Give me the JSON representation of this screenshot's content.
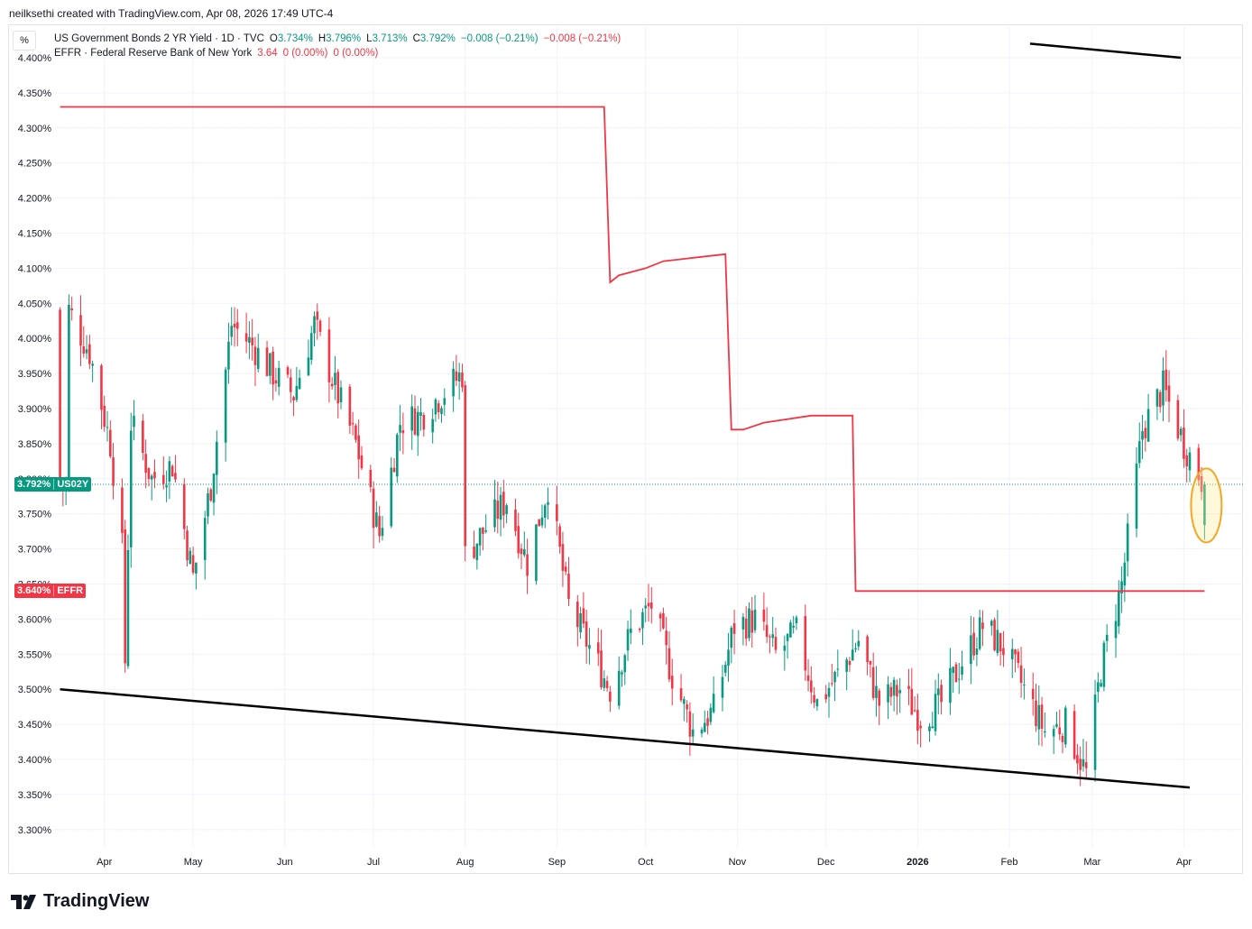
{
  "credit": "neilksethi created with TradingView.com, Apr 08, 2026 17:49 UTC-4",
  "scale_button": "%",
  "legend": {
    "symbol": "US Government Bonds 2 YR Yield · 1D · TVC",
    "o_label": "O",
    "o_value": "3.734%",
    "h_label": "H",
    "h_value": "3.796%",
    "l_label": "L",
    "l_value": "3.713%",
    "c_label": "C",
    "c_value": "3.792%",
    "change": "−0.008 (−0.21%)",
    "change2": "−0.008 (−0.21%)",
    "effr_name": "EFFR · Federal Reserve Bank of New York",
    "effr_value": "3.64",
    "effr_change": "0 (0.00%)",
    "effr_change2": "0 (0.00%)"
  },
  "price_tags": {
    "us02y_value": "3.792%",
    "us02y_label": "US02Y",
    "effr_value": "3.640%",
    "effr_label": "EFFR"
  },
  "logo": "TradingView",
  "colors": {
    "up": "#089981",
    "down": "#f23645",
    "effr": "#f23645",
    "trend": "#000000",
    "highlight": "#f5a623"
  },
  "chart_data": {
    "type": "candlestick",
    "ylim": [
      3.27,
      4.42
    ],
    "y_ticks": [
      "4.400%",
      "4.350%",
      "4.300%",
      "4.250%",
      "4.200%",
      "4.150%",
      "4.100%",
      "4.050%",
      "4.000%",
      "3.950%",
      "3.900%",
      "3.850%",
      "3.800%",
      "3.750%",
      "3.700%",
      "3.650%",
      "3.600%",
      "3.550%",
      "3.500%",
      "3.450%",
      "3.400%",
      "3.350%",
      "3.300%"
    ],
    "x_ticks": [
      "Apr",
      "May",
      "Jun",
      "Jul",
      "Aug",
      "Sep",
      "Oct",
      "Nov",
      "Dec",
      "2026",
      "Feb",
      "Mar",
      "Apr"
    ],
    "series": [
      {
        "name": "US02Y",
        "kind": "candles",
        "path_points": [
          {
            "date": "2025-03-20",
            "v": 4.04
          },
          {
            "date": "2025-03-27",
            "v": 3.98
          },
          {
            "date": "2025-04-03",
            "v": 3.85
          },
          {
            "date": "2025-04-07",
            "v": 3.7
          },
          {
            "date": "2025-04-08",
            "v": 3.54
          },
          {
            "date": "2025-04-10",
            "v": 3.88
          },
          {
            "date": "2025-04-17",
            "v": 3.8
          },
          {
            "date": "2025-04-24",
            "v": 3.82
          },
          {
            "date": "2025-05-01",
            "v": 3.66
          },
          {
            "date": "2025-05-07",
            "v": 3.79
          },
          {
            "date": "2025-05-14",
            "v": 4.02
          },
          {
            "date": "2025-05-21",
            "v": 3.99
          },
          {
            "date": "2025-05-28",
            "v": 3.95
          },
          {
            "date": "2025-06-04",
            "v": 3.92
          },
          {
            "date": "2025-06-11",
            "v": 4.02
          },
          {
            "date": "2025-06-18",
            "v": 3.93
          },
          {
            "date": "2025-06-25",
            "v": 3.85
          },
          {
            "date": "2025-07-03",
            "v": 3.72
          },
          {
            "date": "2025-07-10",
            "v": 3.88
          },
          {
            "date": "2025-07-17",
            "v": 3.89
          },
          {
            "date": "2025-07-24",
            "v": 3.92
          },
          {
            "date": "2025-07-31",
            "v": 3.95
          },
          {
            "date": "2025-08-01",
            "v": 3.69
          },
          {
            "date": "2025-08-08",
            "v": 3.73
          },
          {
            "date": "2025-08-15",
            "v": 3.77
          },
          {
            "date": "2025-08-22",
            "v": 3.68
          },
          {
            "date": "2025-08-29",
            "v": 3.79
          },
          {
            "date": "2025-09-05",
            "v": 3.62
          },
          {
            "date": "2025-09-12",
            "v": 3.56
          },
          {
            "date": "2025-09-19",
            "v": 3.5
          },
          {
            "date": "2025-09-26",
            "v": 3.58
          },
          {
            "date": "2025-10-03",
            "v": 3.62
          },
          {
            "date": "2025-10-10",
            "v": 3.52
          },
          {
            "date": "2025-10-17",
            "v": 3.44
          },
          {
            "date": "2025-10-24",
            "v": 3.47
          },
          {
            "date": "2025-10-31",
            "v": 3.59
          },
          {
            "date": "2025-11-07",
            "v": 3.6
          },
          {
            "date": "2025-11-14",
            "v": 3.55
          },
          {
            "date": "2025-11-21",
            "v": 3.58
          },
          {
            "date": "2025-11-28",
            "v": 3.48
          },
          {
            "date": "2025-12-05",
            "v": 3.52
          },
          {
            "date": "2025-12-12",
            "v": 3.57
          },
          {
            "date": "2025-12-19",
            "v": 3.48
          },
          {
            "date": "2025-12-26",
            "v": 3.5
          },
          {
            "date": "2026-01-02",
            "v": 3.46
          },
          {
            "date": "2026-01-09",
            "v": 3.48
          },
          {
            "date": "2026-01-16",
            "v": 3.54
          },
          {
            "date": "2026-01-23",
            "v": 3.59
          },
          {
            "date": "2026-01-30",
            "v": 3.56
          },
          {
            "date": "2026-02-06",
            "v": 3.5
          },
          {
            "date": "2026-02-13",
            "v": 3.44
          },
          {
            "date": "2026-02-20",
            "v": 3.45
          },
          {
            "date": "2026-02-27",
            "v": 3.38
          },
          {
            "date": "2026-03-04",
            "v": 3.53
          },
          {
            "date": "2026-03-11",
            "v": 3.65
          },
          {
            "date": "2026-03-18",
            "v": 3.87
          },
          {
            "date": "2026-03-25",
            "v": 3.93
          },
          {
            "date": "2026-04-01",
            "v": 3.85
          },
          {
            "date": "2026-04-08",
            "v": 3.79
          }
        ]
      },
      {
        "name": "EFFR",
        "kind": "step",
        "values": [
          {
            "date": "2025-03-17",
            "v": 4.33
          },
          {
            "date": "2025-09-17",
            "v": 4.33
          },
          {
            "date": "2025-09-19",
            "v": 4.08
          },
          {
            "date": "2025-09-22",
            "v": 4.09
          },
          {
            "date": "2025-10-01",
            "v": 4.1
          },
          {
            "date": "2025-10-07",
            "v": 4.11
          },
          {
            "date": "2025-10-28",
            "v": 4.12
          },
          {
            "date": "2025-10-30",
            "v": 3.87
          },
          {
            "date": "2025-11-03",
            "v": 3.87
          },
          {
            "date": "2025-11-10",
            "v": 3.88
          },
          {
            "date": "2025-11-26",
            "v": 3.89
          },
          {
            "date": "2025-12-10",
            "v": 3.89
          },
          {
            "date": "2025-12-11",
            "v": 3.64
          },
          {
            "date": "2026-04-08",
            "v": 3.64
          }
        ]
      }
    ],
    "trendlines": [
      {
        "from": {
          "date": "2025-03-17",
          "v": 3.5
        },
        "to": {
          "date": "2026-04-03",
          "v": 3.36
        }
      },
      {
        "from": {
          "date": "2026-02-08",
          "v": 4.42
        },
        "to": {
          "date": "2026-03-31",
          "v": 4.4
        }
      }
    ],
    "last_price": 3.792,
    "annotation": "highlight ellipse around last candle"
  }
}
